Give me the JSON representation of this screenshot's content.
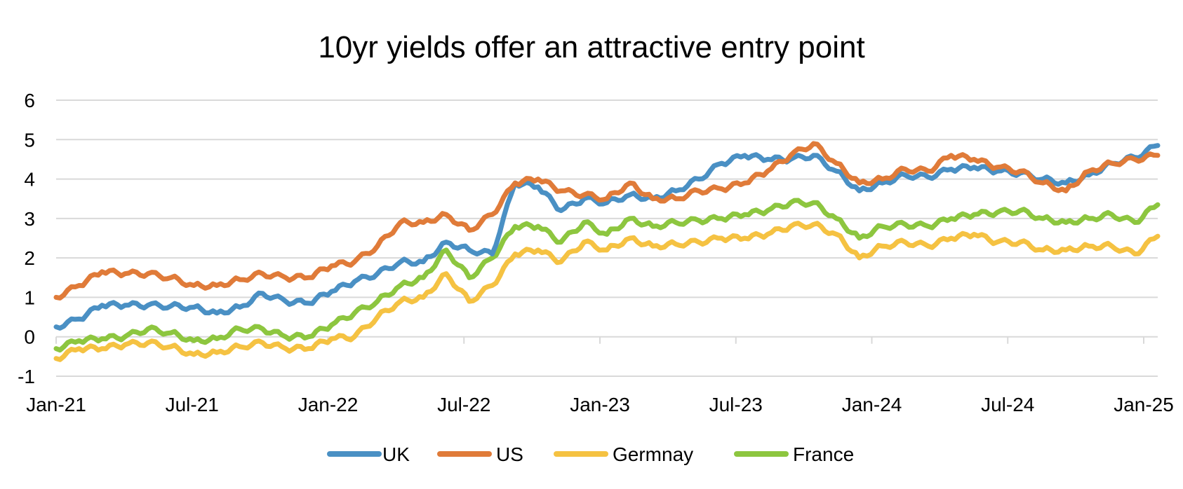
{
  "chart_data": {
    "type": "line",
    "title": "10yr yields offer an attractive entry point",
    "xlabel": "",
    "ylabel": "",
    "ylim": [
      -1,
      6
    ],
    "yticks": [
      -1,
      0,
      1,
      2,
      3,
      4,
      5,
      6
    ],
    "xticks": [
      "Jan-21",
      "Jul-21",
      "Jan-22",
      "Jul-22",
      "Jan-23",
      "Jul-23",
      "Jan-24",
      "Jul-24",
      "Jan-25"
    ],
    "x": [
      "Jan-21",
      "Feb-21",
      "Mar-21",
      "Apr-21",
      "May-21",
      "Jun-21",
      "Jul-21",
      "Aug-21",
      "Sep-21",
      "Oct-21",
      "Nov-21",
      "Dec-21",
      "Jan-22",
      "Feb-22",
      "Mar-22",
      "Apr-22",
      "May-22",
      "Jun-22",
      "Jul-22",
      "Aug-22",
      "Sep-22",
      "Oct-22",
      "Nov-22",
      "Dec-22",
      "Jan-23",
      "Feb-23",
      "Mar-23",
      "Apr-23",
      "May-23",
      "Jun-23",
      "Jul-23",
      "Aug-23",
      "Sep-23",
      "Oct-23",
      "Nov-23",
      "Dec-23",
      "Jan-24",
      "Feb-24",
      "Mar-24",
      "Apr-24",
      "May-24",
      "Jun-24",
      "Jul-24",
      "Aug-24",
      "Sep-24",
      "Oct-24",
      "Nov-24",
      "Dec-24",
      "Jan-25"
    ],
    "grid": true,
    "legend_position": "bottom",
    "series": [
      {
        "name": "UK",
        "color": "#4a90c4",
        "values": [
          0.25,
          0.45,
          0.8,
          0.8,
          0.8,
          0.78,
          0.75,
          0.6,
          0.75,
          1.1,
          0.9,
          0.85,
          1.15,
          1.4,
          1.6,
          1.9,
          1.9,
          2.4,
          2.2,
          2.1,
          3.9,
          3.8,
          3.2,
          3.5,
          3.4,
          3.6,
          3.5,
          3.7,
          4.0,
          4.4,
          4.6,
          4.5,
          4.5,
          4.6,
          4.2,
          3.7,
          3.9,
          4.1,
          4.05,
          4.25,
          4.3,
          4.2,
          4.15,
          4.0,
          3.9,
          4.1,
          4.4,
          4.55,
          4.85
        ]
      },
      {
        "name": "US",
        "color": "#e07b39",
        "values": [
          1.0,
          1.3,
          1.65,
          1.6,
          1.6,
          1.5,
          1.3,
          1.3,
          1.45,
          1.6,
          1.5,
          1.5,
          1.8,
          1.9,
          2.3,
          2.9,
          2.9,
          3.1,
          2.7,
          3.1,
          3.9,
          4.0,
          3.7,
          3.6,
          3.5,
          3.9,
          3.5,
          3.5,
          3.7,
          3.75,
          3.9,
          4.2,
          4.6,
          4.9,
          4.4,
          3.9,
          4.0,
          4.25,
          4.2,
          4.6,
          4.5,
          4.3,
          4.2,
          3.9,
          3.7,
          4.2,
          4.4,
          4.5,
          4.6
        ]
      },
      {
        "name": "Germnay",
        "color": "#f5c242",
        "values": [
          -0.55,
          -0.3,
          -0.3,
          -0.2,
          -0.15,
          -0.25,
          -0.45,
          -0.4,
          -0.25,
          -0.15,
          -0.3,
          -0.3,
          -0.05,
          0.0,
          0.5,
          0.9,
          1.0,
          1.6,
          0.9,
          1.3,
          2.1,
          2.2,
          1.9,
          2.4,
          2.2,
          2.5,
          2.3,
          2.35,
          2.4,
          2.5,
          2.5,
          2.6,
          2.8,
          2.85,
          2.6,
          2.0,
          2.3,
          2.4,
          2.3,
          2.5,
          2.6,
          2.4,
          2.4,
          2.2,
          2.2,
          2.3,
          2.3,
          2.1,
          2.55
        ]
      },
      {
        "name": "France",
        "color": "#8dc63f",
        "values": [
          -0.3,
          -0.1,
          -0.05,
          0.0,
          0.2,
          0.1,
          -0.1,
          -0.05,
          0.2,
          0.2,
          0.0,
          0.0,
          0.3,
          0.6,
          0.9,
          1.3,
          1.5,
          2.2,
          1.5,
          2.0,
          2.8,
          2.8,
          2.4,
          2.9,
          2.6,
          3.0,
          2.8,
          2.9,
          2.95,
          3.0,
          3.1,
          3.2,
          3.4,
          3.4,
          3.0,
          2.5,
          2.8,
          2.85,
          2.8,
          3.0,
          3.1,
          3.15,
          3.2,
          3.0,
          2.9,
          3.0,
          3.1,
          2.9,
          3.35
        ]
      }
    ]
  }
}
